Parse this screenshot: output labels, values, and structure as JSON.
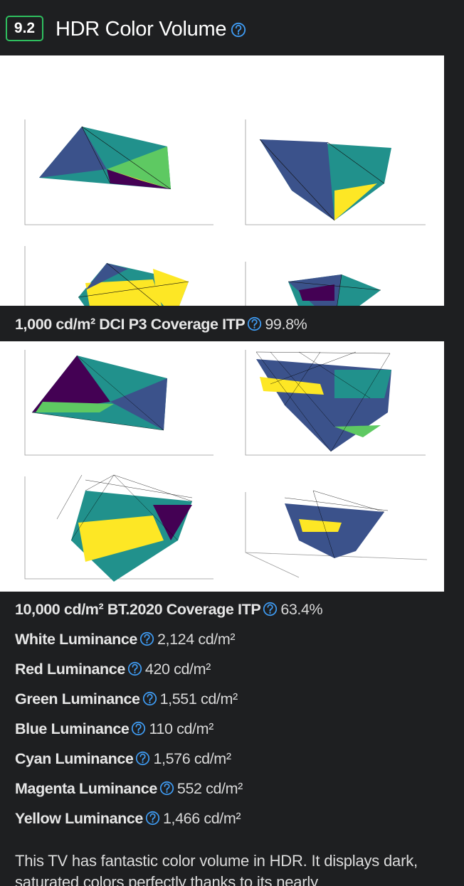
{
  "header": {
    "badge": "9.2",
    "title": "HDR Color Volume"
  },
  "sections": [
    {
      "label": "1,000 cd/m² DCI P3 Coverage ITP",
      "value": "99.8%"
    }
  ],
  "metrics": [
    {
      "label": "10,000 cd/m² BT.2020 Coverage ITP",
      "value": "63.4%"
    },
    {
      "label": "White Luminance",
      "value": "2,124 cd/m²"
    },
    {
      "label": "Red Luminance",
      "value": "420 cd/m²"
    },
    {
      "label": "Green Luminance",
      "value": "1,551 cd/m²"
    },
    {
      "label": "Blue Luminance",
      "value": "110 cd/m²"
    },
    {
      "label": "Cyan Luminance",
      "value": "1,576 cd/m²"
    },
    {
      "label": "Magenta Luminance",
      "value": "552 cd/m²"
    },
    {
      "label": "Yellow Luminance",
      "value": "1,466 cd/m²"
    }
  ],
  "paragraph": "This TV has fantastic color volume in HDR. It displays dark, saturated colors perfectly thanks to its nearly"
}
